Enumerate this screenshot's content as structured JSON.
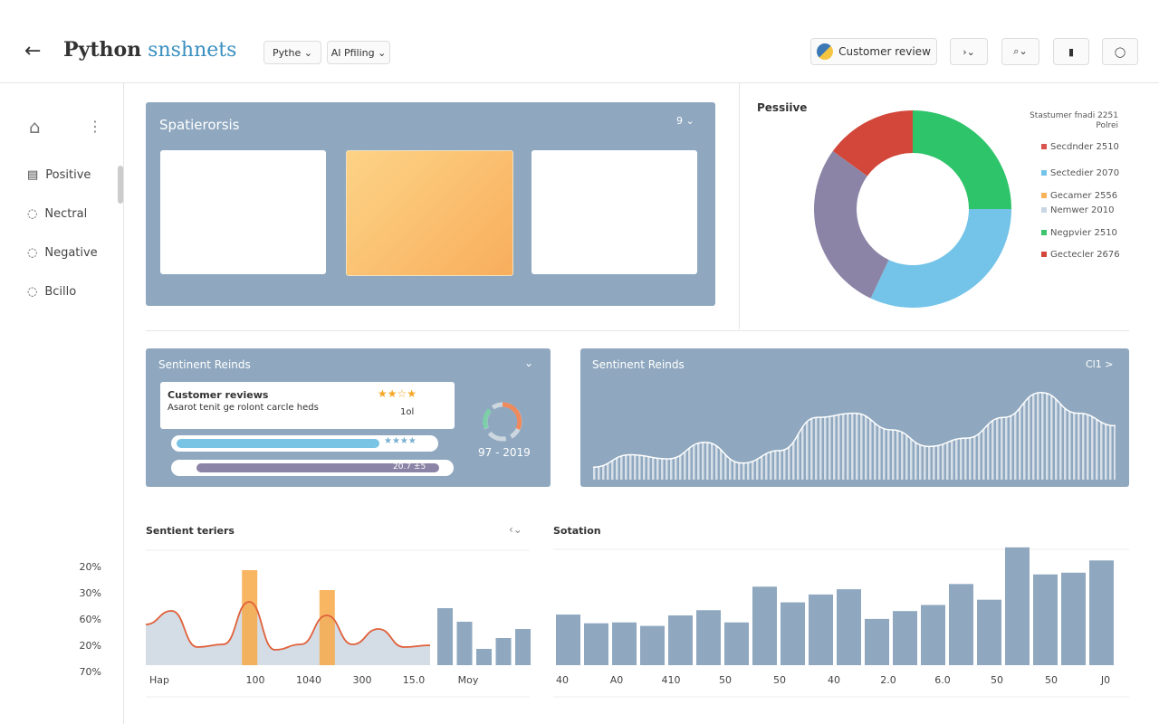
{
  "header": {
    "title_a": "Python",
    "title_b": "snshnets",
    "filters": [
      "Pythe",
      "AI Pfiling"
    ],
    "review_button": "Customer review"
  },
  "sidebar": {
    "items": [
      "Positive",
      "Nectral",
      "Negative",
      "Bcillo"
    ]
  },
  "panel_top": {
    "title": "Spatierorsis",
    "corner": "9"
  },
  "donut": {
    "title": "Pessiive",
    "legend_title": "Stastumer fnadi 2251 Polrei",
    "segments": [
      {
        "color": "#2ec46a",
        "value": 25
      },
      {
        "color": "#74c3e8",
        "value": 32
      },
      {
        "color": "#8c84a6",
        "value": 28
      },
      {
        "color": "#d2473a",
        "value": 15
      }
    ],
    "legend": [
      {
        "label": "Secdnder 2510",
        "color": "#d9534f"
      },
      {
        "label": "Sectedier 2070",
        "color": "#74c3e8"
      },
      {
        "label": "Gecamer 2556",
        "color": "#f5b35c"
      },
      {
        "label": "Nemwer 2010",
        "color": "#c9d6e3"
      },
      {
        "label": "Negpvier 2510",
        "color": "#3cc46e"
      },
      {
        "label": "Gectecler 2676",
        "color": "#d2473a"
      }
    ]
  },
  "panel_reviews": {
    "title": "Sentinent Reinds",
    "card_title": "Customer reviews",
    "card_text": "Asarot tenit ge rolont carcle heds",
    "card_count": "1ol",
    "range": "97 - 2019",
    "bar_label": "20.7 ±5"
  },
  "wave": {
    "title": "Sentinent Reinds",
    "corner": "Cl1 >",
    "values": [
      15,
      30,
      25,
      45,
      20,
      35,
      75,
      80,
      60,
      40,
      50,
      75,
      105,
      80,
      65
    ],
    "ylim": [
      0,
      120
    ]
  },
  "series_chart": {
    "title": "Sentient teriers",
    "y_labels": [
      "20%",
      "30%",
      "60%",
      "20%",
      "70%"
    ],
    "x_labels": [
      "Hap",
      "100",
      "1040",
      "300",
      "15.0",
      "Moy"
    ],
    "line": [
      45,
      60,
      20,
      23,
      70,
      17,
      23,
      55,
      23,
      40,
      20,
      22
    ],
    "highlights": [
      null,
      null,
      null,
      null,
      105,
      null,
      null,
      83,
      null,
      null,
      null,
      null
    ],
    "bars": [
      63,
      48,
      18,
      30,
      40
    ],
    "ylim": [
      0,
      130
    ]
  },
  "bar_chart": {
    "title": "Sotation",
    "x_labels": [
      "40",
      "A0",
      "410",
      "50",
      "50",
      "40",
      "2.0",
      "6.0",
      "50",
      "50",
      "J0"
    ],
    "values": [
      58,
      48,
      49,
      45,
      57,
      63,
      49,
      90,
      72,
      81,
      87,
      53,
      62,
      69,
      93,
      75,
      135,
      104,
      106,
      120
    ],
    "ylim": [
      0,
      140
    ]
  }
}
